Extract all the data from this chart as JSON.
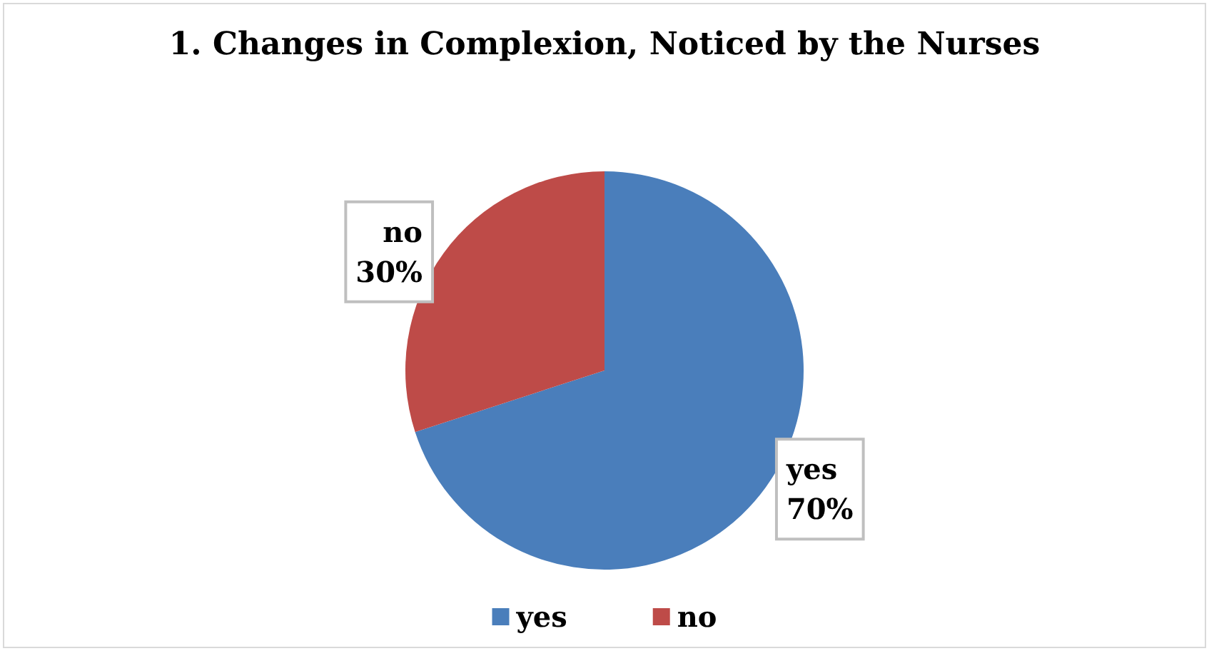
{
  "chart_data": {
    "type": "pie",
    "title": "1. Changes in Complexion, Noticed by the Nurses",
    "categories": [
      "yes",
      "no"
    ],
    "values": [
      70,
      30
    ],
    "colors": [
      "#4a7ebb",
      "#be4b48"
    ],
    "value_labels": [
      "70%",
      "30%"
    ],
    "legend": "bottom"
  }
}
